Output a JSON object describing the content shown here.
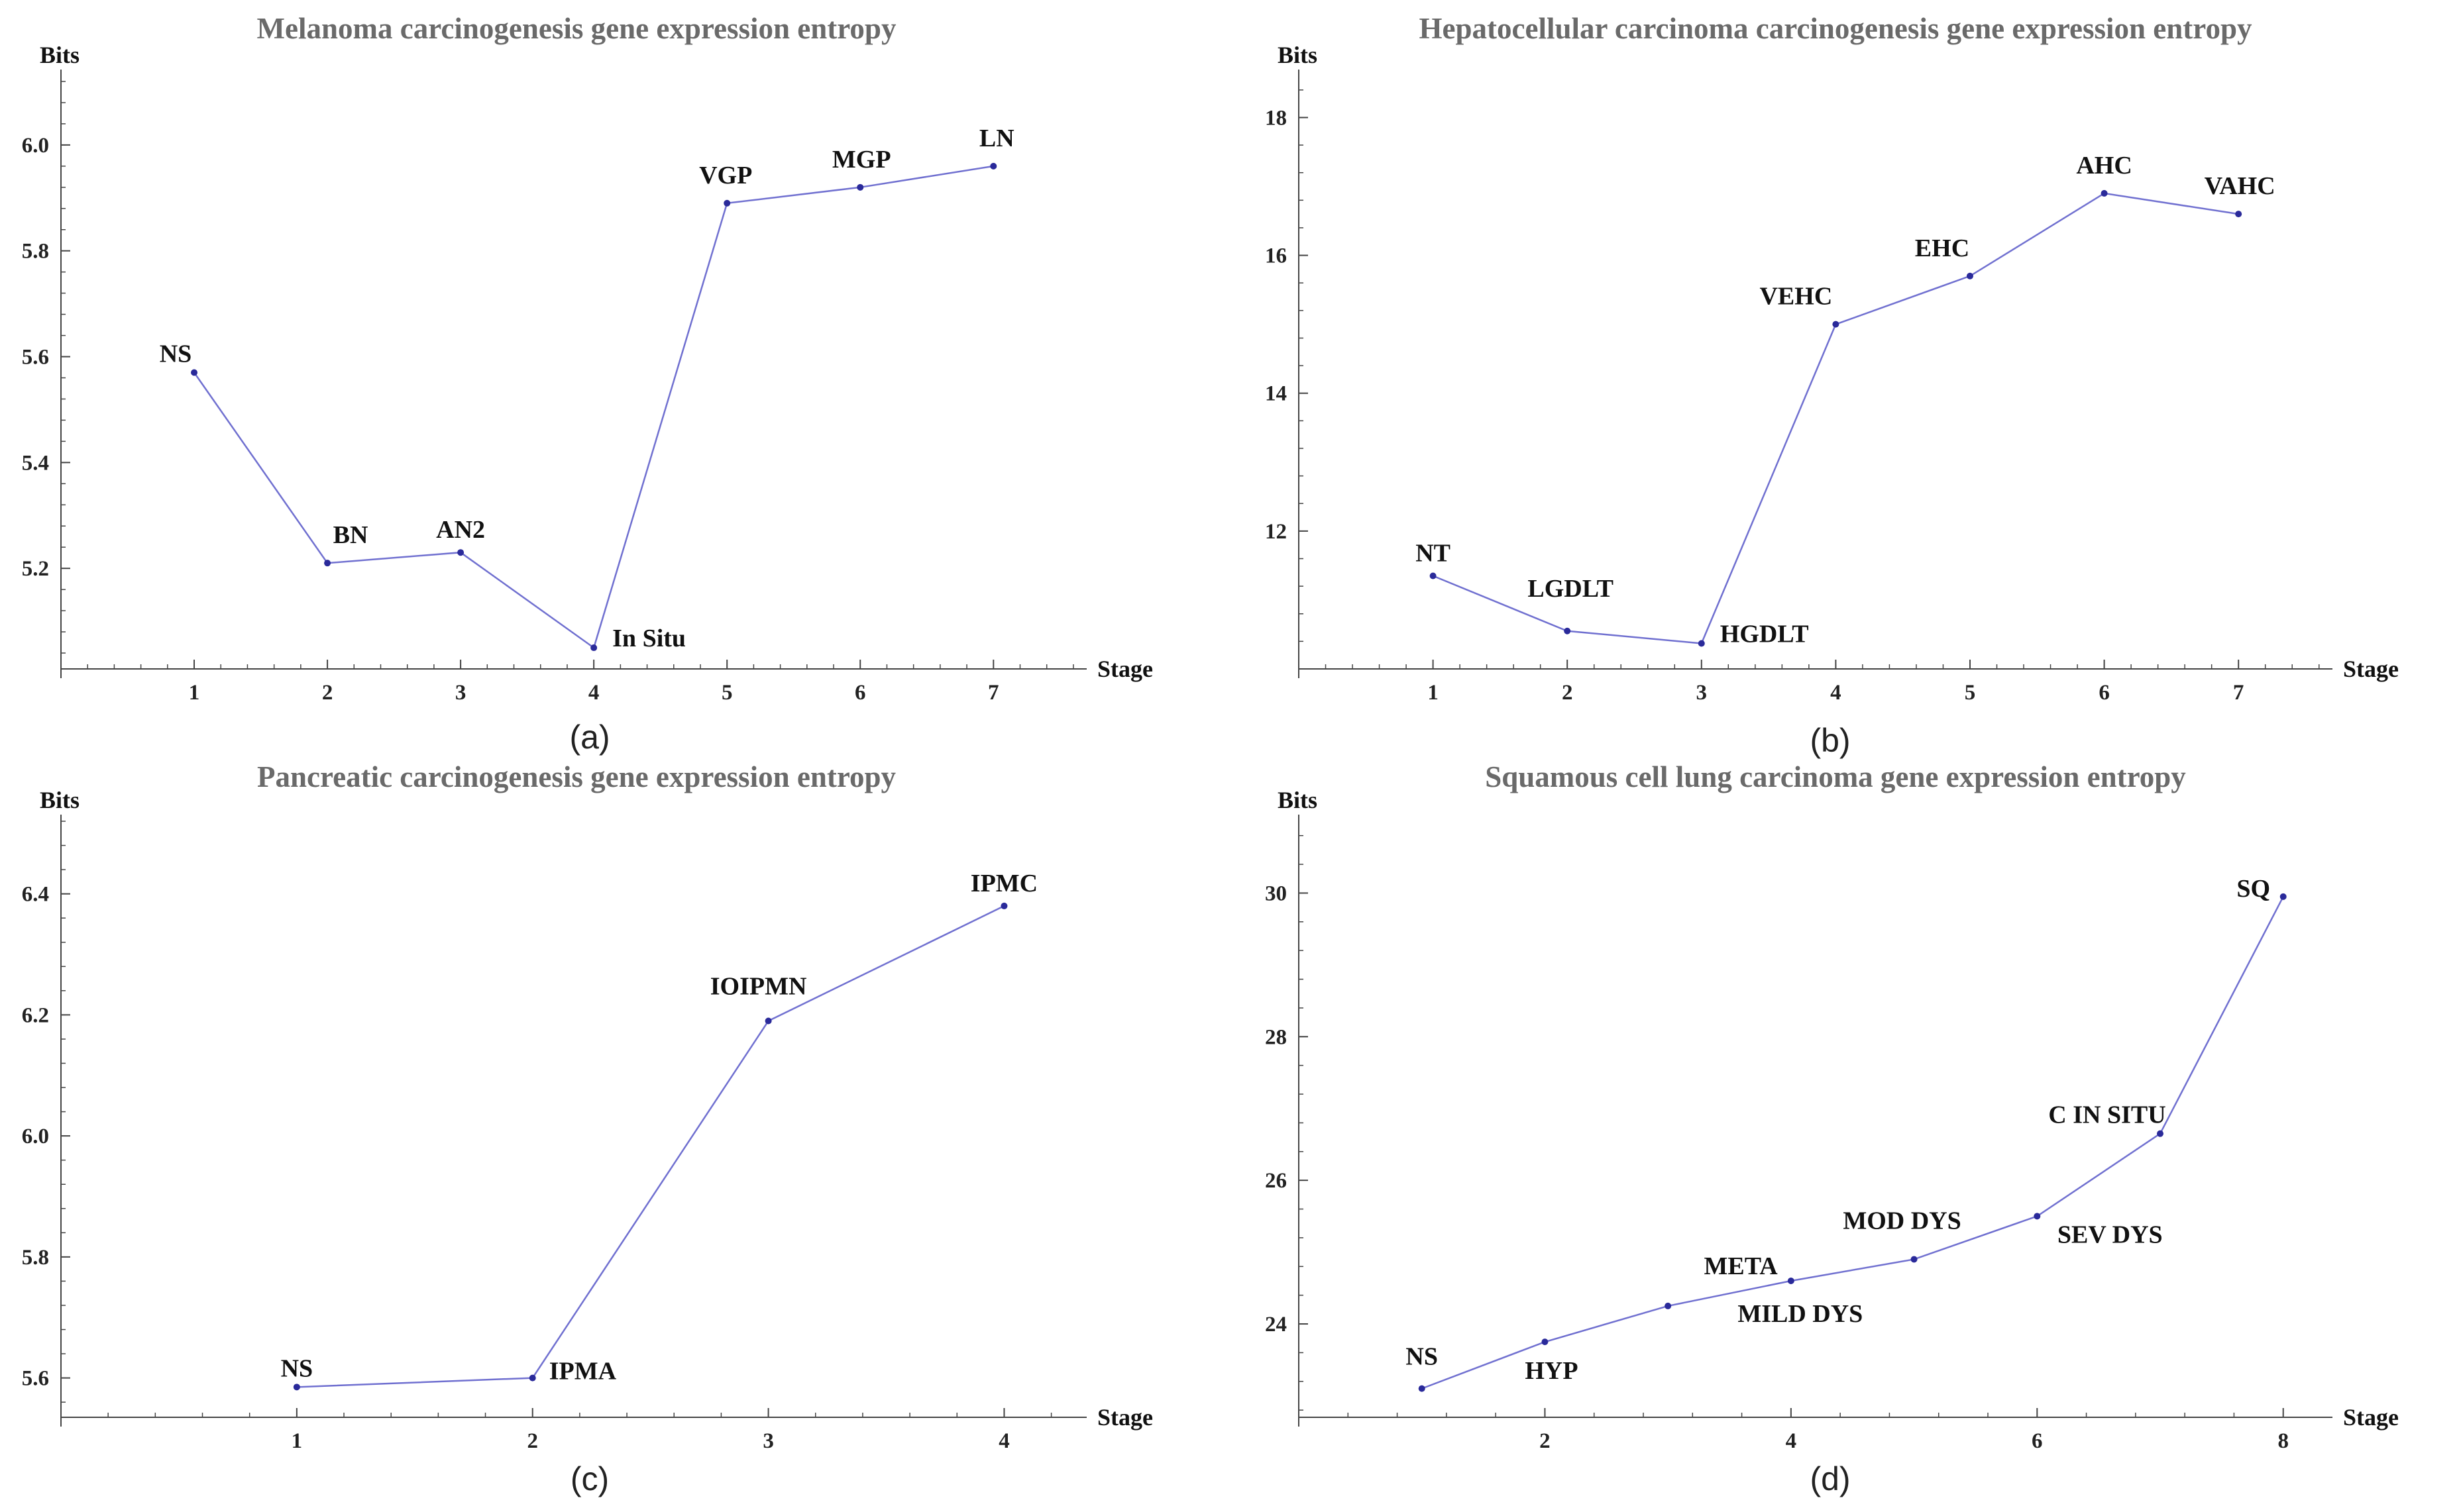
{
  "colors": {
    "line": "#7070d0",
    "point": "#2a2a9a",
    "axis": "#444444",
    "title": "#6a6a6a"
  },
  "chart_data": [
    {
      "type": "line",
      "title": "Melanoma carcinogenesis gene expression entropy",
      "xlabel": "Stage",
      "ylabel": "Bits",
      "caption": "(a)",
      "x": [
        1,
        2,
        3,
        4,
        5,
        6,
        7
      ],
      "y": [
        5.57,
        5.21,
        5.23,
        5.05,
        5.89,
        5.92,
        5.96
      ],
      "point_labels": [
        "NS",
        "BN",
        "AN2",
        "In Situ",
        "VGP",
        "MGP",
        "LN"
      ],
      "xticks": [
        1,
        2,
        3,
        4,
        5,
        6,
        7
      ],
      "xtick_labels": [
        "1",
        "2",
        "3",
        "4",
        "5",
        "6",
        "7"
      ],
      "yticks": [
        5.2,
        5.4,
        5.6,
        5.8,
        6.0
      ],
      "ytick_labels": [
        "5.2",
        "5.4",
        "5.6",
        "5.8",
        "6.0"
      ],
      "xlim": [
        0,
        7.7
      ],
      "ylim": [
        5.01,
        6.13
      ]
    },
    {
      "type": "line",
      "title": "Hepatocellular carcinoma carcinogenesis gene expression entropy",
      "xlabel": "Stage",
      "ylabel": "Bits",
      "caption": "(b)",
      "x": [
        1,
        2,
        3,
        4,
        5,
        6,
        7
      ],
      "y": [
        11.35,
        10.55,
        10.37,
        15.0,
        15.7,
        16.9,
        16.6
      ],
      "point_labels": [
        "NT",
        "LGDLT",
        "HGDLT",
        "VEHC",
        "EHC",
        "AHC",
        "VAHC"
      ],
      "xticks": [
        1,
        2,
        3,
        4,
        5,
        6,
        7
      ],
      "xtick_labels": [
        "1",
        "2",
        "3",
        "4",
        "5",
        "6",
        "7"
      ],
      "yticks": [
        12,
        14,
        16,
        18
      ],
      "ytick_labels": [
        "12",
        "14",
        "16",
        "18"
      ],
      "xlim": [
        0,
        7.7
      ],
      "ylim": [
        10.0,
        18.6
      ]
    },
    {
      "type": "line",
      "title": "Pancreatic carcinogenesis gene expression entropy",
      "xlabel": "Stage",
      "ylabel": "Bits",
      "caption": "(c)",
      "x": [
        1,
        2,
        3,
        4
      ],
      "y": [
        5.585,
        5.6,
        6.19,
        6.38
      ],
      "point_labels": [
        "NS",
        "IPMA",
        "IOIPMN",
        "IPMC"
      ],
      "xticks": [
        1,
        2,
        3,
        4
      ],
      "xtick_labels": [
        "1",
        "2",
        "3",
        "4"
      ],
      "yticks": [
        5.6,
        5.8,
        6.0,
        6.2,
        6.4
      ],
      "ytick_labels": [
        "5.6",
        "5.8",
        "6.0",
        "6.2",
        "6.4"
      ],
      "xlim": [
        0,
        4.35
      ],
      "ylim": [
        5.535,
        6.52
      ]
    },
    {
      "type": "line",
      "title": "Squamous cell lung carcinoma gene expression entropy",
      "xlabel": "Stage",
      "ylabel": "Bits",
      "caption": "(d)",
      "x": [
        1,
        2,
        3,
        4,
        5,
        6,
        7,
        8
      ],
      "y": [
        23.1,
        23.75,
        24.25,
        24.6,
        24.9,
        25.5,
        26.65,
        29.95
      ],
      "point_labels": [
        "NS",
        "HYP",
        "META",
        "MILD DYS",
        "MOD DYS",
        "SEV DYS",
        "C IN SITU",
        "SQ"
      ],
      "xticks": [
        2,
        4,
        6,
        8
      ],
      "xtick_labels": [
        "2",
        "4",
        "6",
        "8"
      ],
      "yticks": [
        24,
        26,
        28,
        30
      ],
      "ytick_labels": [
        "24",
        "26",
        "28",
        "30"
      ],
      "xlim": [
        0,
        8.4
      ],
      "ylim": [
        22.7,
        31.0
      ]
    }
  ]
}
